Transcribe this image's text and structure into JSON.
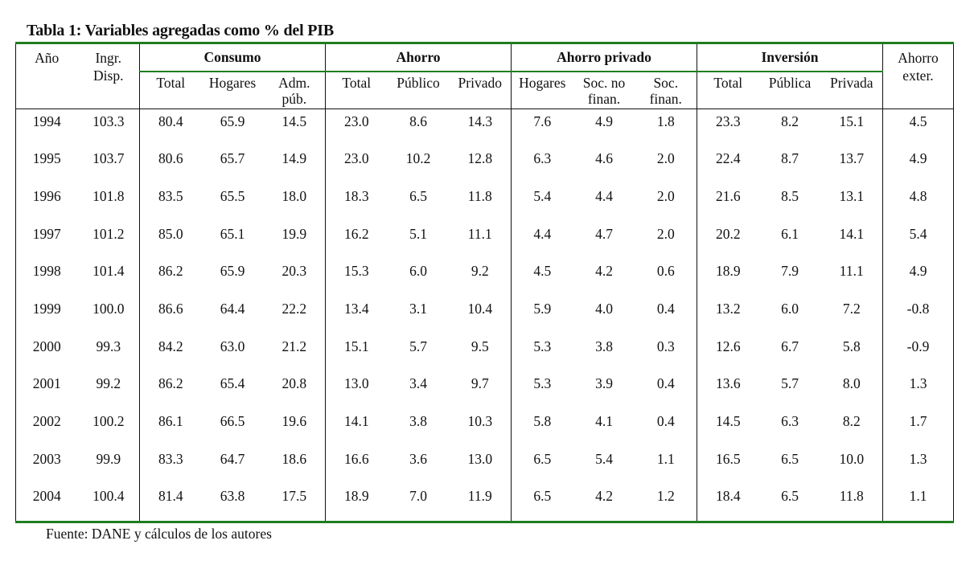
{
  "title": "Tabla 1: Variables agregadas como % del PIB",
  "headers": {
    "year": "Año",
    "ingr": [
      "Ingr.",
      "Disp."
    ],
    "groups": [
      "Consumo",
      "Ahorro",
      "Ahorro privado",
      "Inversión"
    ],
    "ahorro_ext": [
      "Ahorro",
      "exter."
    ],
    "sub": [
      [
        "Total"
      ],
      [
        "Hogares"
      ],
      [
        "Adm.",
        "púb."
      ],
      [
        "Total"
      ],
      [
        "Público"
      ],
      [
        "Privado"
      ],
      [
        "Hogares"
      ],
      [
        "Soc. no",
        "finan."
      ],
      [
        "Soc.",
        "finan."
      ],
      [
        "Total"
      ],
      [
        "Pública"
      ],
      [
        "Privada"
      ]
    ]
  },
  "rows": [
    [
      "1994",
      "103.3",
      "80.4",
      "65.9",
      "14.5",
      "23.0",
      "8.6",
      "14.3",
      "7.6",
      "4.9",
      "1.8",
      "23.3",
      "8.2",
      "15.1",
      "4.5"
    ],
    [
      "1995",
      "103.7",
      "80.6",
      "65.7",
      "14.9",
      "23.0",
      "10.2",
      "12.8",
      "6.3",
      "4.6",
      "2.0",
      "22.4",
      "8.7",
      "13.7",
      "4.9"
    ],
    [
      "1996",
      "101.8",
      "83.5",
      "65.5",
      "18.0",
      "18.3",
      "6.5",
      "11.8",
      "5.4",
      "4.4",
      "2.0",
      "21.6",
      "8.5",
      "13.1",
      "4.8"
    ],
    [
      "1997",
      "101.2",
      "85.0",
      "65.1",
      "19.9",
      "16.2",
      "5.1",
      "11.1",
      "4.4",
      "4.7",
      "2.0",
      "20.2",
      "6.1",
      "14.1",
      "5.4"
    ],
    [
      "1998",
      "101.4",
      "86.2",
      "65.9",
      "20.3",
      "15.3",
      "6.0",
      "9.2",
      "4.5",
      "4.2",
      "0.6",
      "18.9",
      "7.9",
      "11.1",
      "4.9"
    ],
    [
      "1999",
      "100.0",
      "86.6",
      "64.4",
      "22.2",
      "13.4",
      "3.1",
      "10.4",
      "5.9",
      "4.0",
      "0.4",
      "13.2",
      "6.0",
      "7.2",
      "-0.8"
    ],
    [
      "2000",
      "99.3",
      "84.2",
      "63.0",
      "21.2",
      "15.1",
      "5.7",
      "9.5",
      "5.3",
      "3.8",
      "0.3",
      "12.6",
      "6.7",
      "5.8",
      "-0.9"
    ],
    [
      "2001",
      "99.2",
      "86.2",
      "65.4",
      "20.8",
      "13.0",
      "3.4",
      "9.7",
      "5.3",
      "3.9",
      "0.4",
      "13.6",
      "5.7",
      "8.0",
      "1.3"
    ],
    [
      "2002",
      "100.2",
      "86.1",
      "66.5",
      "19.6",
      "14.1",
      "3.8",
      "10.3",
      "5.8",
      "4.1",
      "0.4",
      "14.5",
      "6.3",
      "8.2",
      "1.7"
    ],
    [
      "2003",
      "99.9",
      "83.3",
      "64.7",
      "18.6",
      "16.6",
      "3.6",
      "13.0",
      "6.5",
      "5.4",
      "1.1",
      "16.5",
      "6.5",
      "10.0",
      "1.3"
    ],
    [
      "2004",
      "100.4",
      "81.4",
      "63.8",
      "17.5",
      "18.9",
      "7.0",
      "11.9",
      "6.5",
      "4.2",
      "1.2",
      "18.4",
      "6.5",
      "11.8",
      "1.1"
    ]
  ],
  "source": "Fuente: DANE y cálculos de los autores",
  "colors": {
    "rule": "#1e7d1e",
    "text": "#111111"
  }
}
